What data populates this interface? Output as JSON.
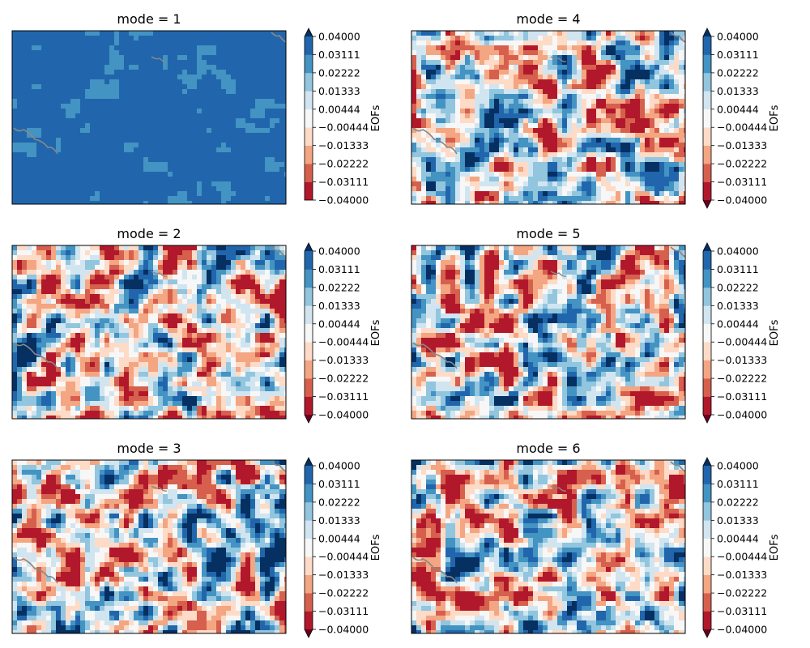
{
  "chart_data": {
    "type": "heatmap",
    "subtype": "filled-contour map panels with coastlines",
    "colormap": "RdBu",
    "grid": false,
    "legend": "colorbar to the right of each panel",
    "colorbar_label": "EOFs",
    "levels": [
      -0.04,
      -0.03111,
      -0.02222,
      -0.01333,
      -0.00444,
      0.00444,
      0.01333,
      0.02222,
      0.03111,
      0.04
    ],
    "tick_labels": [
      "−0.04000",
      "−0.03111",
      "−0.02222",
      "−0.01333",
      "−0.00444",
      "0.00444",
      "0.01333",
      "0.02222",
      "0.03111",
      "0.04000"
    ],
    "band_colors_low_to_high": [
      "#67001f",
      "#b2182b",
      "#d6604d",
      "#f4a582",
      "#fddbc7",
      "#f7f7f7",
      "#d1e5f0",
      "#92c5de",
      "#4393c3",
      "#2166ac",
      "#053061"
    ],
    "panels": [
      {
        "title": "mode = 1",
        "extend": "max",
        "value_range": [
          0.0222,
          0.04
        ]
      },
      {
        "title": "mode = 2",
        "extend": "both",
        "value_range": [
          -0.04,
          0.04
        ]
      },
      {
        "title": "mode = 3",
        "extend": "both",
        "value_range": [
          -0.04,
          0.04
        ]
      },
      {
        "title": "mode = 4",
        "extend": "both",
        "value_range": [
          -0.04,
          0.04
        ]
      },
      {
        "title": "mode = 5",
        "extend": "both",
        "value_range": [
          -0.04,
          0.04
        ]
      },
      {
        "title": "mode = 6",
        "extend": "both",
        "value_range": [
          -0.04,
          0.04
        ]
      }
    ]
  }
}
